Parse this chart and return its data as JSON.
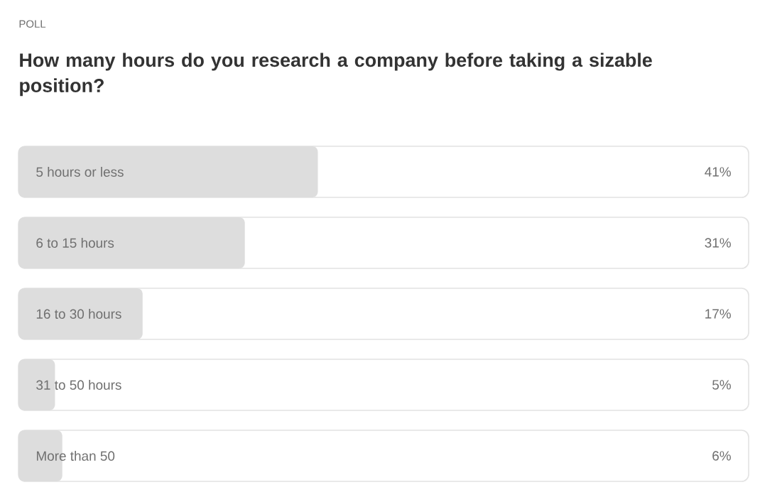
{
  "chart_data": {
    "type": "bar",
    "orientation": "horizontal",
    "annotations": [
      "POLL"
    ],
    "title": "How many hours do you research a company before taking a sizable position?",
    "categories": [
      "5 hours or less",
      "6 to 15 hours",
      "16 to 30 hours",
      "31 to 50 hours",
      "More than 50"
    ],
    "series": [
      {
        "color": "#e2e2e2",
        "values": [
          100,
          100,
          100,
          100,
          100
        ]
      },
      {
        "color": "#dddddd",
        "values": [
          41,
          31,
          17,
          5,
          6
        ],
        "value_labels": [
          "41%",
          "31%",
          "17%",
          "5%",
          "6%"
        ]
      }
    ],
    "xlim": [
      0,
      100
    ]
  }
}
